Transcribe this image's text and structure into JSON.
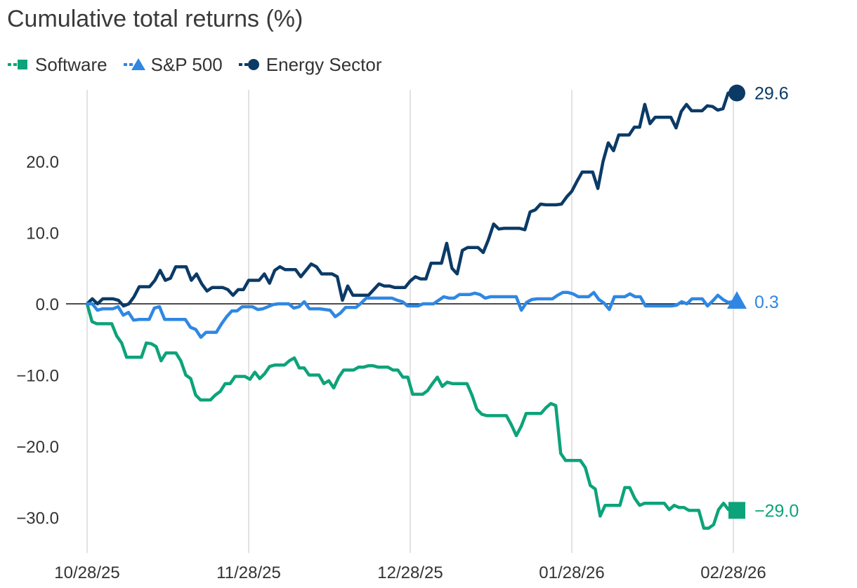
{
  "chart_data": {
    "type": "line",
    "title": "Cumulative total returns (%)",
    "xlabel": "",
    "ylabel": "",
    "x_tick_labels": [
      "10/28/25",
      "11/28/25",
      "12/28/25",
      "01/28/26",
      "02/28/26"
    ],
    "y_ticks": [
      20.0,
      10.0,
      0.0,
      -10.0,
      -20.0,
      -30.0
    ],
    "y_tick_labels": [
      "20.0",
      "10.0",
      "0.0",
      "−10.0",
      "−20.0",
      "−30.0"
    ],
    "ylim": [
      -35,
      31
    ],
    "grid": "vertical",
    "legend_position": "top-left",
    "series": [
      {
        "name": "Software",
        "color": "#0da37a",
        "marker": "square",
        "end_label": "−29.0",
        "values": [
          0.0,
          -2.5,
          -2.8,
          -2.8,
          -2.8,
          -2.8,
          -4.5,
          -5.5,
          -7.5,
          -7.5,
          -7.5,
          -7.5,
          -5.5,
          -5.6,
          -6.0,
          -8.0,
          -6.9,
          -6.9,
          -6.9,
          -8.0,
          -10.0,
          -10.5,
          -12.8,
          -13.5,
          -13.5,
          -13.5,
          -12.8,
          -12.3,
          -11.2,
          -11.2,
          -10.2,
          -10.2,
          -10.2,
          -10.6,
          -9.6,
          -10.5,
          -9.8,
          -8.8,
          -8.6,
          -8.6,
          -8.6,
          -8.0,
          -7.6,
          -9.0,
          -9.0,
          -10.0,
          -10.0,
          -10.0,
          -11.2,
          -10.8,
          -11.8,
          -10.3,
          -9.3,
          -9.3,
          -9.3,
          -8.9,
          -8.9,
          -8.7,
          -8.7,
          -8.9,
          -8.9,
          -8.9,
          -9.3,
          -9.3,
          -10.3,
          -10.3,
          -12.7,
          -12.7,
          -12.7,
          -12.2,
          -11.2,
          -10.3,
          -11.6,
          -11.0,
          -11.2,
          -11.2,
          -11.2,
          -11.2,
          -12.8,
          -14.8,
          -15.5,
          -15.7,
          -15.7,
          -15.7,
          -15.7,
          -15.7,
          -17.0,
          -18.5,
          -17.2,
          -15.4,
          -15.4,
          -15.4,
          -15.4,
          -14.6,
          -14.0,
          -14.3,
          -21.0,
          -22.0,
          -22.0,
          -22.0,
          -22.0,
          -23.0,
          -25.5,
          -26.0,
          -29.8,
          -28.3,
          -28.3,
          -28.3,
          -28.3,
          -25.8,
          -25.8,
          -27.3,
          -28.3,
          -28.0,
          -28.0,
          -28.0,
          -28.0,
          -28.0,
          -28.9,
          -28.3,
          -28.6,
          -28.6,
          -29.0,
          -29.0,
          -29.0,
          -31.5,
          -31.5,
          -31.0,
          -28.9,
          -28.0,
          -28.9,
          -29.0
        ]
      },
      {
        "name": "S&P 500",
        "color": "#2f87e3",
        "marker": "triangle",
        "end_label": "0.3",
        "values": [
          0.0,
          0.0,
          -0.9,
          -0.7,
          -0.7,
          -0.7,
          -0.4,
          -1.6,
          -1.2,
          -2.3,
          -2.2,
          -2.2,
          -2.2,
          -0.6,
          -0.4,
          -2.2,
          -2.2,
          -2.2,
          -2.2,
          -2.2,
          -3.3,
          -3.6,
          -4.7,
          -4.0,
          -4.0,
          -4.0,
          -2.8,
          -1.8,
          -1.0,
          -1.0,
          -0.4,
          -0.4,
          -0.4,
          -0.8,
          -0.7,
          -0.4,
          -0.1,
          0.0,
          0.0,
          0.0,
          -0.6,
          -0.4,
          0.3,
          -0.7,
          -0.7,
          -0.7,
          -0.8,
          -0.9,
          -1.8,
          -1.3,
          -0.5,
          -0.5,
          -0.5,
          0.1,
          0.8,
          0.8,
          0.8,
          0.8,
          0.8,
          0.8,
          0.5,
          0.3,
          -0.3,
          -0.3,
          -0.3,
          0.0,
          0.0,
          0.0,
          0.5,
          1.0,
          0.8,
          0.8,
          1.3,
          1.3,
          1.3,
          1.5,
          1.3,
          0.8,
          1.0,
          1.0,
          1.0,
          1.0,
          1.0,
          1.0,
          -0.9,
          0.2,
          0.6,
          0.7,
          0.7,
          0.7,
          0.7,
          1.2,
          1.6,
          1.6,
          1.4,
          1.0,
          1.0,
          1.0,
          1.6,
          0.6,
          0.1,
          -0.8,
          1.0,
          1.0,
          1.0,
          1.4,
          1.0,
          1.0,
          -0.3,
          -0.3,
          -0.3,
          -0.3,
          -0.3,
          -0.3,
          -0.2,
          0.3,
          0.0,
          0.7,
          0.7,
          0.7,
          -0.3,
          0.4,
          1.2,
          0.6,
          0.2,
          0.3
        ]
      },
      {
        "name": "Energy Sector",
        "color": "#0b3a66",
        "marker": "circle",
        "end_label": "29.6",
        "values": [
          0.0,
          0.7,
          0.0,
          0.7,
          0.7,
          0.7,
          0.5,
          -0.3,
          0.0,
          1.0,
          2.4,
          2.4,
          2.4,
          3.3,
          4.7,
          3.3,
          3.6,
          5.2,
          5.2,
          5.2,
          3.3,
          4.2,
          2.8,
          1.8,
          2.3,
          2.3,
          2.3,
          2.0,
          1.2,
          2.0,
          2.0,
          3.3,
          3.3,
          3.3,
          4.2,
          2.9,
          4.7,
          5.2,
          4.8,
          4.8,
          4.8,
          3.8,
          4.7,
          5.6,
          5.2,
          4.2,
          4.2,
          4.2,
          3.8,
          0.5,
          2.5,
          1.2,
          1.2,
          1.2,
          1.2,
          2.0,
          2.8,
          2.5,
          2.5,
          2.3,
          2.3,
          2.3,
          3.2,
          3.8,
          3.5,
          3.5,
          5.7,
          5.7,
          5.7,
          8.5,
          5.0,
          4.2,
          7.5,
          7.9,
          7.9,
          7.9,
          7.2,
          9.0,
          11.2,
          10.5,
          10.6,
          10.6,
          10.6,
          10.6,
          10.4,
          12.9,
          13.2,
          14.0,
          13.9,
          13.9,
          13.9,
          14.0,
          15.0,
          15.8,
          17.2,
          18.5,
          18.5,
          18.5,
          16.2,
          20.0,
          22.6,
          21.5,
          23.7,
          23.7,
          23.7,
          24.8,
          24.8,
          28.0,
          25.3,
          26.2,
          26.2,
          26.2,
          26.2,
          24.7,
          27.0,
          28.0,
          27.1,
          27.1,
          27.1,
          27.8,
          27.7,
          27.2,
          27.4,
          29.6,
          29.6
        ]
      }
    ]
  }
}
